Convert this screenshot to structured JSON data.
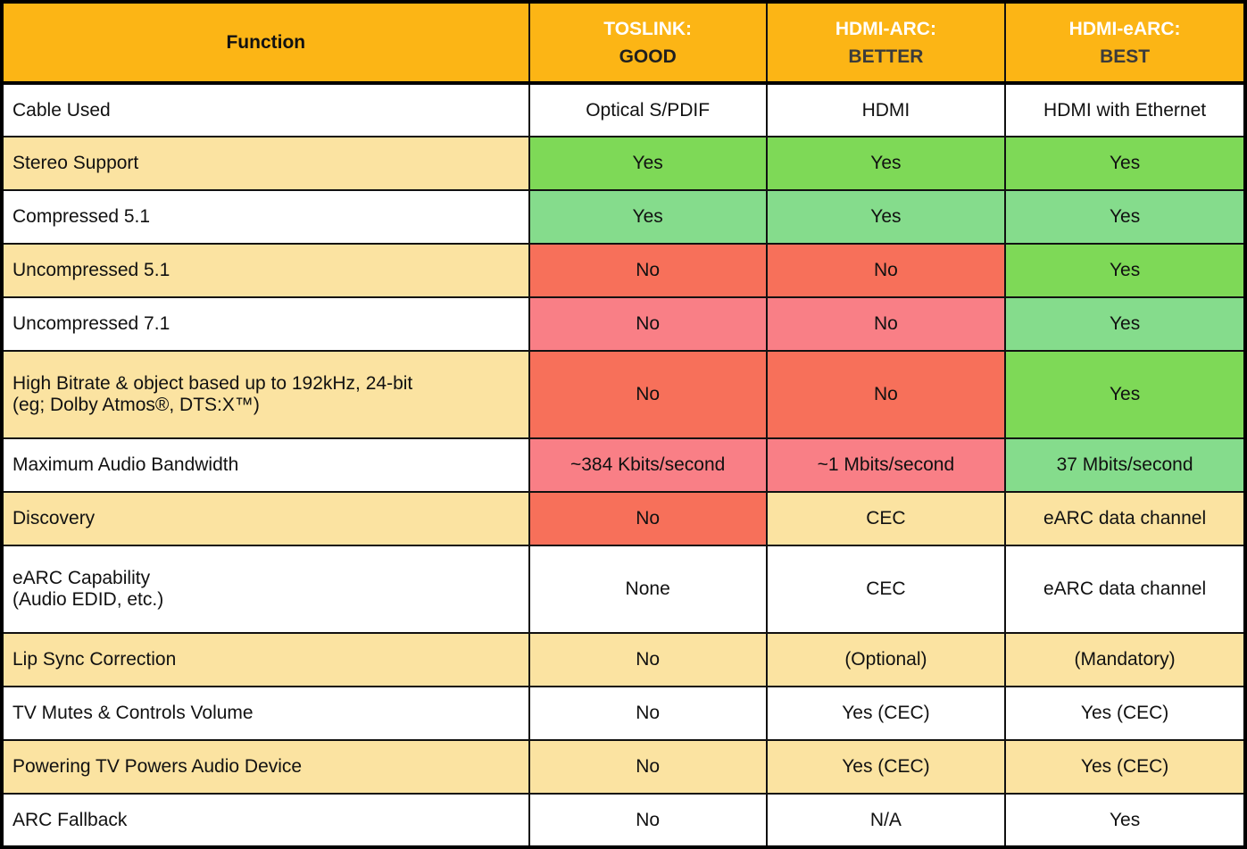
{
  "table": {
    "header": {
      "function_label": "Function",
      "columns": [
        {
          "line1": "TOSLINK:",
          "line2": "GOOD"
        },
        {
          "line1": "HDMI-ARC:",
          "line2": "BETTER"
        },
        {
          "line1": "HDMI-eARC:",
          "line2": "BEST"
        }
      ]
    },
    "rows": [
      {
        "function": "Cable Used",
        "stripe": "white",
        "tall": false,
        "cells": [
          {
            "text": "Optical S/PDIF",
            "style": "white"
          },
          {
            "text": "HDMI",
            "style": "white"
          },
          {
            "text": "HDMI with Ethernet",
            "style": "white"
          }
        ]
      },
      {
        "function": "Stereo Support",
        "stripe": "tan",
        "tall": false,
        "cells": [
          {
            "text": "Yes",
            "style": "green-dark"
          },
          {
            "text": "Yes",
            "style": "green-dark"
          },
          {
            "text": "Yes",
            "style": "green-dark"
          }
        ]
      },
      {
        "function": "Compressed 5.1",
        "stripe": "white",
        "tall": false,
        "cells": [
          {
            "text": "Yes",
            "style": "green-light"
          },
          {
            "text": "Yes",
            "style": "green-light"
          },
          {
            "text": "Yes",
            "style": "green-light"
          }
        ]
      },
      {
        "function": "Uncompressed 5.1",
        "stripe": "tan",
        "tall": false,
        "cells": [
          {
            "text": "No",
            "style": "red-dark"
          },
          {
            "text": "No",
            "style": "red-dark"
          },
          {
            "text": "Yes",
            "style": "green-dark"
          }
        ]
      },
      {
        "function": "Uncompressed 7.1",
        "stripe": "white",
        "tall": false,
        "cells": [
          {
            "text": "No",
            "style": "red-light"
          },
          {
            "text": "No",
            "style": "red-light"
          },
          {
            "text": "Yes",
            "style": "green-light"
          }
        ]
      },
      {
        "function": "High Bitrate & object based up to 192kHz, 24-bit\n(eg; Dolby Atmos®, DTS:X™)",
        "stripe": "tan",
        "tall": true,
        "cells": [
          {
            "text": "No",
            "style": "red-dark"
          },
          {
            "text": "No",
            "style": "red-dark"
          },
          {
            "text": "Yes",
            "style": "green-dark"
          }
        ]
      },
      {
        "function": "Maximum Audio Bandwidth",
        "stripe": "white",
        "tall": false,
        "cells": [
          {
            "text": "~384 Kbits/second",
            "style": "red-light"
          },
          {
            "text": "~1 Mbits/second",
            "style": "red-light"
          },
          {
            "text": "37 Mbits/second",
            "style": "green-light"
          }
        ]
      },
      {
        "function": "Discovery",
        "stripe": "tan",
        "tall": false,
        "cells": [
          {
            "text": "No",
            "style": "red-dark"
          },
          {
            "text": "CEC",
            "style": "tan"
          },
          {
            "text": "eARC data channel",
            "style": "tan"
          }
        ]
      },
      {
        "function": "eARC Capability\n(Audio EDID, etc.)",
        "stripe": "white",
        "tall": true,
        "cells": [
          {
            "text": "None",
            "style": "white"
          },
          {
            "text": "CEC",
            "style": "white"
          },
          {
            "text": "eARC data channel",
            "style": "white"
          }
        ]
      },
      {
        "function": "Lip Sync Correction",
        "stripe": "tan",
        "tall": false,
        "cells": [
          {
            "text": "No",
            "style": "tan"
          },
          {
            "text": "(Optional)",
            "style": "tan"
          },
          {
            "text": "(Mandatory)",
            "style": "tan"
          }
        ]
      },
      {
        "function": "TV Mutes & Controls Volume",
        "stripe": "white",
        "tall": false,
        "cells": [
          {
            "text": "No",
            "style": "white"
          },
          {
            "text": "Yes (CEC)",
            "style": "white"
          },
          {
            "text": "Yes (CEC)",
            "style": "white"
          }
        ]
      },
      {
        "function": "Powering TV Powers Audio Device",
        "stripe": "tan",
        "tall": false,
        "cells": [
          {
            "text": "No",
            "style": "tan"
          },
          {
            "text": "Yes (CEC)",
            "style": "tan"
          },
          {
            "text": "Yes (CEC)",
            "style": "tan"
          }
        ]
      },
      {
        "function": "ARC Fallback",
        "stripe": "white",
        "tall": false,
        "cells": [
          {
            "text": "No",
            "style": "white"
          },
          {
            "text": "N/A",
            "style": "white"
          },
          {
            "text": "Yes",
            "style": "white"
          }
        ]
      }
    ],
    "colors": {
      "header_bg": "#FCB515",
      "tan": "#FBE3A1",
      "green_dark_bg": "#7ED957",
      "green_light_bg": "#85DC8C",
      "red_dark_bg": "#F7705A",
      "red_light_bg": "#F97F86",
      "green_text": "#28B43C",
      "red_text": "#E3173B",
      "green_border": "#12B32C",
      "red_border": "#DE1B31",
      "header_sub_good": "#1F1F1F",
      "header_sub_better": "#3B3B3B",
      "header_sub_best": "#3B3B3B"
    }
  }
}
